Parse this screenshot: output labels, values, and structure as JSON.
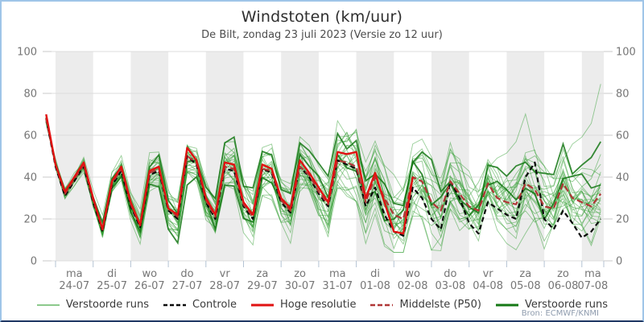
{
  "header": {
    "title": "Windstoten (km/uur)",
    "subtitle": "De Bilt, zondag 23 juli 2023 (Versie zo 12 uur)"
  },
  "footer": {
    "source": "Bron: ECMWF/KNMI"
  },
  "legend": {
    "position": "bottom",
    "items": [
      {
        "label": "Verstoorde runs",
        "key": "ensemble_light",
        "dash": "",
        "width": 2
      },
      {
        "label": "Controle",
        "key": "controle",
        "dash": "5 3",
        "width": 2.4
      },
      {
        "label": "Hoge resolutie",
        "key": "hres",
        "dash": "",
        "width": 3
      },
      {
        "label": "Middelste (P50)",
        "key": "p50",
        "dash": "6 3",
        "width": 2.4
      },
      {
        "label": "Verstoorde runs",
        "key": "ensemble_dark",
        "dash": "",
        "width": 3
      }
    ]
  },
  "colors": {
    "ensemble_light": "#2f9e2f",
    "ensemble_dark": "#157815",
    "controle": "#0a0a0a",
    "hres": "#e11212",
    "p50": "#b03636",
    "band": "#ececec",
    "grid": "#dcdcdc",
    "axis_text": "#767676",
    "axis_tick": "#c9c9c9",
    "x_tick": "#b4c3d3"
  },
  "chart_data": {
    "type": "line",
    "title": "Windstoten (km/uur)",
    "subtitle": "De Bilt, zondag 23 juli 2023 (Versie zo 12 uur)",
    "xlabel": "",
    "ylabel": "km/uur",
    "ylim": [
      0,
      100
    ],
    "yticks": [
      0,
      20,
      40,
      60,
      80,
      100
    ],
    "grid": "horizontal",
    "legend_position": "bottom",
    "step_hours": 6,
    "days": [
      {
        "dow": "ma",
        "date": "24-07"
      },
      {
        "dow": "di",
        "date": "25-07"
      },
      {
        "dow": "wo",
        "date": "26-07"
      },
      {
        "dow": "do",
        "date": "27-07"
      },
      {
        "dow": "vr",
        "date": "28-07"
      },
      {
        "dow": "za",
        "date": "29-07"
      },
      {
        "dow": "zo",
        "date": "30-07"
      },
      {
        "dow": "ma",
        "date": "31-07"
      },
      {
        "dow": "di",
        "date": "01-08"
      },
      {
        "dow": "wo",
        "date": "02-08"
      },
      {
        "dow": "do",
        "date": "03-08"
      },
      {
        "dow": "vr",
        "date": "04-08"
      },
      {
        "dow": "za",
        "date": "05-08"
      },
      {
        "dow": "zo",
        "date": "06-08"
      },
      {
        "dow": "ma",
        "date": "07-08"
      }
    ],
    "series": [
      {
        "name": "Controle",
        "style": "black-dashed",
        "values": [
          68,
          45,
          31,
          38,
          45,
          28,
          14,
          36,
          43,
          26,
          16,
          41,
          43,
          24,
          20,
          50,
          46,
          28,
          20,
          44,
          43,
          26,
          20,
          44,
          42,
          28,
          23,
          45,
          40,
          32,
          26,
          48,
          46,
          44,
          26,
          35,
          22,
          14,
          12,
          35,
          30,
          20,
          15,
          38,
          30,
          18,
          13,
          28,
          25,
          22,
          20,
          40,
          47,
          20,
          15,
          24,
          18,
          11,
          14,
          20
        ]
      },
      {
        "name": "Hoge resolutie",
        "style": "red-solid",
        "values": [
          70,
          46,
          33,
          40,
          47,
          30,
          15,
          38,
          45,
          28,
          17,
          43,
          45,
          25,
          22,
          54,
          48,
          30,
          22,
          47,
          46,
          28,
          22,
          46,
          44,
          30,
          25,
          48,
          42,
          35,
          28,
          52,
          51,
          52,
          30,
          42,
          28,
          14,
          13,
          40
        ]
      },
      {
        "name": "Middelste (P50)",
        "style": "darkred-dashed",
        "values": [
          68,
          46,
          32,
          39,
          46,
          29,
          15,
          37,
          44,
          27,
          17,
          42,
          44,
          25,
          21,
          50,
          47,
          29,
          21,
          45,
          44,
          27,
          21,
          44,
          43,
          29,
          24,
          45,
          41,
          33,
          27,
          48,
          47,
          45,
          28,
          40,
          30,
          22,
          20,
          40,
          38,
          28,
          24,
          38,
          32,
          26,
          24,
          37,
          30,
          28,
          27,
          37,
          34,
          26,
          25,
          37,
          30,
          28,
          26,
          32
        ]
      }
    ],
    "ensemble": {
      "label": "Verstoorde runs",
      "members_drawn": 28,
      "start_value": 68,
      "spread_min": 2,
      "spread_max": 18,
      "value_floor": 4,
      "outlier_peak": 83,
      "end_high": 64
    }
  }
}
